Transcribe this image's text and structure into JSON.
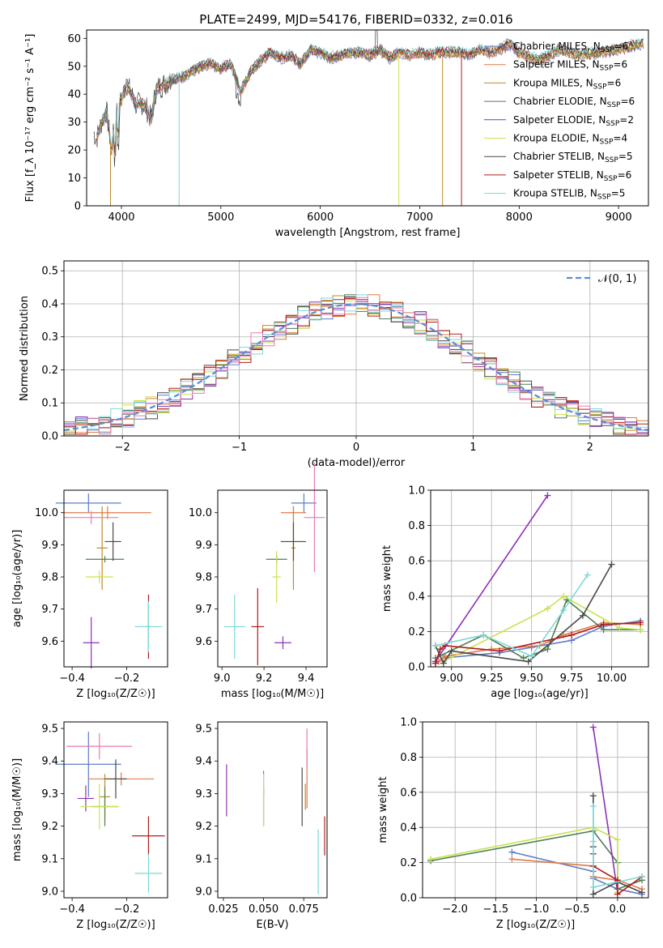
{
  "chart_data": [
    {
      "id": "spectrum",
      "type": "line",
      "title": "PLATE=2499, MJD=54176, FIBERID=0332, z=0.016",
      "xlabel": "wavelength [Angstrom, rest frame]",
      "ylabel": "Flux [f_λ 10⁻¹⁷ erg cm⁻² s⁻¹ A⁻¹]",
      "xlim": [
        3650,
        9300
      ],
      "ylim": [
        0,
        63
      ],
      "xticks": [
        4000,
        5000,
        6000,
        7000,
        8000,
        9000
      ],
      "yticks": [
        0,
        10,
        20,
        30,
        40,
        50,
        60
      ],
      "grid": false,
      "legend_position": "top-right",
      "observed": {
        "x": [
          3700,
          3750,
          3800,
          3850,
          3900,
          3950,
          4000,
          4050,
          4100,
          4150,
          4200,
          4250,
          4300,
          4350,
          4400,
          4500,
          4600,
          4700,
          4800,
          4900,
          5000,
          5100,
          5200,
          5300,
          5400,
          5500,
          5600,
          5700,
          5800,
          5900,
          6000,
          6100,
          6200,
          6300,
          6400,
          6500,
          6600,
          6700,
          6800,
          6900,
          7000,
          7100,
          7200,
          7300,
          7400,
          7500,
          7600,
          7700,
          7800,
          7900,
          8000,
          8200,
          8400,
          8600,
          8800,
          9000,
          9200
        ],
        "y": [
          28,
          24,
          30,
          34,
          20,
          34,
          38,
          44,
          40,
          36,
          37,
          35,
          31,
          42,
          43,
          45,
          46,
          48,
          50,
          51,
          49,
          51,
          41,
          48,
          52,
          55,
          53,
          54,
          51,
          56,
          55,
          53,
          54,
          55,
          55,
          54,
          56,
          53,
          55,
          54,
          55,
          54,
          55,
          55,
          55,
          54,
          56,
          55,
          56,
          58,
          55,
          52,
          56,
          54,
          55,
          56,
          58
        ]
      },
      "series": [
        {
          "name": "Chabrier MILES, N_SSP=6",
          "color": "#5e7cc8"
        },
        {
          "name": "Salpeter MILES, N_SSP=6",
          "color": "#e07b4a"
        },
        {
          "name": "Kroupa MILES, N_SSP=6",
          "color": "#c18a2b"
        },
        {
          "name": "Chabrier ELODIE, N_SSP=6",
          "color": "#4f7f52"
        },
        {
          "name": "Salpeter ELODIE, N_SSP=2",
          "color": "#8c32b4"
        },
        {
          "name": "Kroupa ELODIE, N_SSP=4",
          "color": "#c9e24e"
        },
        {
          "name": "Chabrier STELIB, N_SSP=5",
          "color": "#4a4a4a"
        },
        {
          "name": "Salpeter STELIB, N_SSP=6",
          "color": "#b31b1b"
        },
        {
          "name": "Kroupa STELIB, N_SSP=5",
          "color": "#7dd8d8"
        }
      ]
    },
    {
      "id": "residuals",
      "type": "line",
      "xlabel": "(data-model)/error",
      "ylabel": "Normed distribution",
      "xlim": [
        -2.5,
        2.5
      ],
      "ylim": [
        0,
        0.53
      ],
      "xticks": [
        -2,
        -1,
        0,
        1,
        2
      ],
      "yticks": [
        0.0,
        0.1,
        0.2,
        0.3,
        0.4,
        0.5
      ],
      "grid": true,
      "legend_position": "top-right",
      "legend": "𝒩(0, 1)",
      "gaussian": {
        "mean": 0,
        "sigma": 1,
        "color": "#5b8bd6"
      },
      "hist_bin_width": 0.1,
      "hist_x_start": -2.5
    },
    {
      "id": "age_vs_Z",
      "type": "scatter",
      "xlabel": "Z [log₁₀(Z/Z☉)]",
      "ylabel": "age  [log₁₀(age/yr)]",
      "xlim": [
        -0.43,
        -0.05
      ],
      "ylim": [
        9.52,
        10.07
      ],
      "xticks": [
        -0.4,
        -0.2
      ],
      "yticks": [
        9.6,
        9.7,
        9.8,
        9.9,
        10.0
      ],
      "points": [
        {
          "x": -0.34,
          "y": 10.03,
          "xerr": 0.12,
          "yerr": 0.03,
          "color": "#5e7cc8"
        },
        {
          "x": -0.27,
          "y": 10.0,
          "xerr": 0.16,
          "yerr": 0.02,
          "color": "#e07b4a"
        },
        {
          "x": -0.29,
          "y": 9.89,
          "xerr": 0.02,
          "yerr": 0.13,
          "color": "#c18a2b"
        },
        {
          "x": -0.28,
          "y": 9.855,
          "xerr": 0.07,
          "yerr": 0.01,
          "color": "#4f7f52"
        },
        {
          "x": -0.33,
          "y": 9.595,
          "xerr": 0.03,
          "yerr": 0.08,
          "color": "#8c32b4"
        },
        {
          "x": -0.3,
          "y": 9.8,
          "xerr": 0.05,
          "yerr": 0.02,
          "color": "#c9e24e"
        },
        {
          "x": -0.25,
          "y": 9.91,
          "xerr": 0.03,
          "yerr": 0.06,
          "color": "#4a4a4a"
        },
        {
          "x": -0.12,
          "y": 9.645,
          "xerr": 0.01,
          "yerr": 0.1,
          "color": "#b31b1b"
        },
        {
          "x": -0.33,
          "y": 9.985,
          "xerr": 0.1,
          "yerr": 0.02,
          "color": "#e87ab6"
        },
        {
          "x": -0.12,
          "y": 9.645,
          "xerr": 0.05,
          "yerr": 0.08,
          "color": "#7dd8d8"
        }
      ]
    },
    {
      "id": "age_vs_mass",
      "type": "scatter",
      "xlabel": "mass [log₁₀(M/M☉)]",
      "ylabel": "",
      "xlim": [
        8.98,
        9.5
      ],
      "ylim": [
        9.52,
        10.07
      ],
      "xticks": [
        9.0,
        9.2,
        9.4
      ],
      "yticks": [
        9.6,
        9.7,
        9.8,
        9.9,
        10.0
      ],
      "points": [
        {
          "x": 9.39,
          "y": 10.03,
          "xerr": 0.06,
          "yerr": 0.03,
          "color": "#5e7cc8"
        },
        {
          "x": 9.34,
          "y": 10.0,
          "xerr": 0.06,
          "yerr": 0.02,
          "color": "#e07b4a"
        },
        {
          "x": 9.34,
          "y": 9.89,
          "xerr": 0.01,
          "yerr": 0.13,
          "color": "#c18a2b"
        },
        {
          "x": 9.26,
          "y": 9.855,
          "xerr": 0.05,
          "yerr": 0.01,
          "color": "#4f7f52"
        },
        {
          "x": 9.29,
          "y": 9.595,
          "xerr": 0.04,
          "yerr": 0.02,
          "color": "#8c32b4"
        },
        {
          "x": 9.26,
          "y": 9.8,
          "xerr": 0.02,
          "yerr": 0.08,
          "color": "#c9e24e"
        },
        {
          "x": 9.34,
          "y": 9.91,
          "xerr": 0.06,
          "yerr": 0.06,
          "color": "#4a4a4a"
        },
        {
          "x": 9.17,
          "y": 9.645,
          "xerr": 0.03,
          "yerr": 0.12,
          "color": "#b31b1b"
        },
        {
          "x": 9.44,
          "y": 9.985,
          "xerr": 0.05,
          "yerr": 0.17,
          "color": "#e87ab6"
        },
        {
          "x": 9.06,
          "y": 9.645,
          "xerr": 0.05,
          "yerr": 0.1,
          "color": "#7dd8d8"
        }
      ]
    },
    {
      "id": "weight_vs_age",
      "type": "line",
      "xlabel": "age  [log₁₀(age/yr)]",
      "ylabel": "mass weight",
      "xlim": [
        8.87,
        10.23
      ],
      "ylim": [
        0,
        1.0
      ],
      "xticks": [
        9.0,
        9.25,
        9.5,
        9.75,
        10.0
      ],
      "yticks": [
        0.0,
        0.2,
        0.4,
        0.6,
        0.8,
        1.0
      ],
      "grid": true,
      "series": [
        {
          "color": "#5e7cc8",
          "x": [
            8.9,
            8.95,
            9.3,
            9.5,
            9.75,
            9.95,
            10.18
          ],
          "y": [
            0.02,
            0.05,
            0.08,
            0.11,
            0.15,
            0.23,
            0.26
          ]
        },
        {
          "color": "#e07b4a",
          "x": [
            8.92,
            8.96,
            9.25,
            9.55,
            9.7,
            9.95,
            10.18
          ],
          "y": [
            0.03,
            0.06,
            0.1,
            0.12,
            0.18,
            0.25,
            0.24
          ]
        },
        {
          "color": "#4f7f52",
          "x": [
            8.9,
            9.2,
            9.45,
            9.6,
            9.72,
            9.95,
            10.18
          ],
          "y": [
            0.05,
            0.18,
            0.05,
            0.1,
            0.38,
            0.21,
            0.21
          ]
        },
        {
          "color": "#8c32b4",
          "x": [
            8.9,
            9.6
          ],
          "y": [
            0.03,
            0.97
          ]
        },
        {
          "color": "#c9e24e",
          "x": [
            8.95,
            9.6,
            9.7,
            10.05,
            10.18
          ],
          "y": [
            0.03,
            0.33,
            0.4,
            0.22,
            0.21
          ]
        },
        {
          "color": "#4a4a4a",
          "x": [
            8.9,
            8.95,
            9.0,
            9.48,
            9.82,
            10.0
          ],
          "y": [
            0.12,
            0.02,
            0.09,
            0.03,
            0.29,
            0.58
          ]
        },
        {
          "color": "#b31b1b",
          "x": [
            8.9,
            8.93,
            8.96,
            9.3,
            9.75,
            9.95,
            10.18
          ],
          "y": [
            0.02,
            0.1,
            0.12,
            0.09,
            0.18,
            0.24,
            0.25
          ]
        },
        {
          "color": "#7dd8d8",
          "x": [
            8.9,
            9.2,
            9.5,
            9.7,
            9.85
          ],
          "y": [
            0.12,
            0.18,
            0.06,
            0.32,
            0.52
          ]
        }
      ]
    },
    {
      "id": "mass_vs_Z",
      "type": "scatter",
      "xlabel": "Z [log₁₀(Z/Z☉)]",
      "ylabel": "mass [log₁₀(M/M☉)]",
      "xlim": [
        -0.43,
        -0.05
      ],
      "ylim": [
        8.98,
        9.52
      ],
      "xticks": [
        -0.4,
        -0.2
      ],
      "yticks": [
        9.0,
        9.1,
        9.2,
        9.3,
        9.4,
        9.5
      ],
      "points": [
        {
          "x": -0.34,
          "y": 9.39,
          "xerr": 0.12,
          "yerr": 0.1,
          "color": "#5e7cc8"
        },
        {
          "x": -0.22,
          "y": 9.345,
          "xerr": 0.12,
          "yerr": 0.02,
          "color": "#e07b4a"
        },
        {
          "x": -0.28,
          "y": 9.29,
          "xerr": 0.02,
          "yerr": 0.07,
          "color": "#c18a2b"
        },
        {
          "x": -0.28,
          "y": 9.26,
          "xerr": 0.05,
          "yerr": 0.06,
          "color": "#4f7f52"
        },
        {
          "x": -0.35,
          "y": 9.285,
          "xerr": 0.03,
          "yerr": 0.04,
          "color": "#8c32b4"
        },
        {
          "x": -0.3,
          "y": 9.26,
          "xerr": 0.07,
          "yerr": 0.07,
          "color": "#c9e24e"
        },
        {
          "x": -0.24,
          "y": 9.345,
          "xerr": 0.04,
          "yerr": 0.06,
          "color": "#4a4a4a"
        },
        {
          "x": -0.12,
          "y": 9.17,
          "xerr": 0.06,
          "yerr": 0.06,
          "color": "#b31b1b"
        },
        {
          "x": -0.3,
          "y": 9.445,
          "xerr": 0.12,
          "yerr": 0.04,
          "color": "#e87ab6"
        },
        {
          "x": -0.12,
          "y": 9.055,
          "xerr": 0.05,
          "yerr": 0.06,
          "color": "#7dd8d8"
        }
      ]
    },
    {
      "id": "mass_vs_EBV",
      "type": "scatter",
      "xlabel": "E(B-V)",
      "ylabel": "",
      "xlim": [
        0.0215,
        0.0895
      ],
      "ylim": [
        8.98,
        9.52
      ],
      "xticks": [
        0.025,
        0.05,
        0.075
      ],
      "yticks": [
        9.0,
        9.1,
        9.2,
        9.3,
        9.4,
        9.5
      ],
      "points": [
        {
          "x": 0.05,
          "y": 9.33,
          "xerr": 0,
          "yerr": 0.04,
          "color": "#5e7cc8"
        },
        {
          "x": 0.077,
          "y": 9.345,
          "xerr": 0,
          "yerr": 0.09,
          "color": "#e07b4a"
        },
        {
          "x": 0.076,
          "y": 9.29,
          "xerr": 0,
          "yerr": 0.04,
          "color": "#c18a2b"
        },
        {
          "x": 0.05,
          "y": 9.26,
          "xerr": 0,
          "yerr": 0.06,
          "color": "#4f7f52"
        },
        {
          "x": 0.027,
          "y": 9.31,
          "xerr": 0,
          "yerr": 0.08,
          "color": "#8c32b4"
        },
        {
          "x": 0.05,
          "y": 9.28,
          "xerr": 0,
          "yerr": 0.08,
          "color": "#c9e24e"
        },
        {
          "x": 0.074,
          "y": 9.29,
          "xerr": 0,
          "yerr": 0.09,
          "color": "#4a4a4a"
        },
        {
          "x": 0.088,
          "y": 9.17,
          "xerr": 0,
          "yerr": 0.06,
          "color": "#b31b1b"
        },
        {
          "x": 0.077,
          "y": 9.44,
          "xerr": 0,
          "yerr": 0.06,
          "color": "#e87ab6"
        },
        {
          "x": 0.084,
          "y": 9.09,
          "xerr": 0,
          "yerr": 0.1,
          "color": "#7dd8d8"
        }
      ]
    },
    {
      "id": "weight_vs_Z",
      "type": "line",
      "xlabel": "Z [log₁₀(Z/Z☉)]",
      "ylabel": "mass weight",
      "xlim": [
        -2.4,
        0.38
      ],
      "ylim": [
        0,
        1.0
      ],
      "xticks": [
        -2.0,
        -1.5,
        -1.0,
        -0.5,
        0.0
      ],
      "yticks": [
        0.0,
        0.2,
        0.4,
        0.6,
        0.8,
        1.0
      ],
      "grid": true,
      "series": [
        {
          "color": "#5e7cc8",
          "x": [
            -1.3,
            -0.3,
            -0.3,
            0.0,
            0.3
          ],
          "y": [
            0.26,
            0.15,
            0.11,
            0.05,
            0.02
          ]
        },
        {
          "color": "#e07b4a",
          "x": [
            -1.3,
            -0.3,
            -0.3,
            0.0,
            0.3
          ],
          "y": [
            0.22,
            0.18,
            0.12,
            0.1,
            0.05
          ]
        },
        {
          "color": "#4f7f52",
          "x": [
            -2.3,
            -0.3,
            0.0,
            0.0,
            0.3
          ],
          "y": [
            0.21,
            0.38,
            0.2,
            0.05,
            0.1
          ]
        },
        {
          "color": "#8c32b4",
          "x": [
            -0.3,
            0.0
          ],
          "y": [
            0.97,
            0.03
          ]
        },
        {
          "color": "#c9e24e",
          "x": [
            -2.3,
            -0.3,
            0.0,
            0.0
          ],
          "y": [
            0.22,
            0.4,
            0.33,
            0.03
          ]
        },
        {
          "color": "#4a4a4a",
          "x": [
            -0.3,
            -0.3,
            -0.3,
            0.0,
            0.3
          ],
          "y": [
            0.58,
            0.29,
            0.02,
            0.09,
            0.03
          ]
        },
        {
          "color": "#b31b1b",
          "x": [
            -0.3,
            -0.3,
            0.0,
            0.0,
            0.3
          ],
          "y": [
            0.25,
            0.18,
            0.1,
            0.02,
            0.12
          ]
        },
        {
          "color": "#7dd8d8",
          "x": [
            -0.3,
            -0.3,
            -0.3,
            0.3
          ],
          "y": [
            0.52,
            0.32,
            0.06,
            0.12
          ]
        }
      ]
    }
  ]
}
